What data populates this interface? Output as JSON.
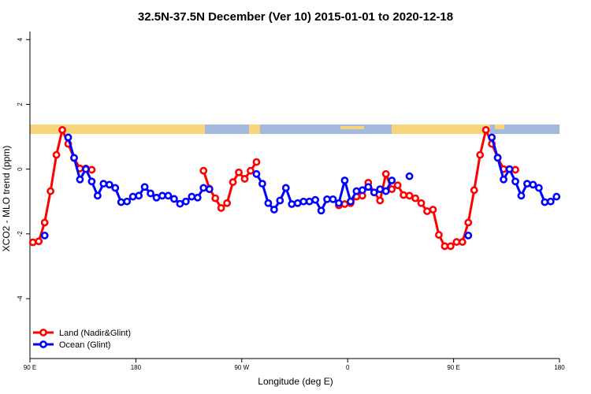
{
  "chart_data": {
    "type": "line",
    "title": "32.5N-37.5N December (Ver 10)   2015-01-01 to 2020-12-18",
    "x_label": "Longitude (deg E)",
    "y_label": "XCO2 - MLO trend (ppm)",
    "xlim": [
      90,
      540
    ],
    "ylim": [
      -5.85,
      4.25
    ],
    "xticks": [
      {
        "value": 90,
        "label": "90 E"
      },
      180,
      {
        "value": 270,
        "label": "90 W"
      },
      {
        "value": 360,
        "label": "0"
      },
      {
        "value": 450,
        "label": "90 E"
      },
      {
        "value": 540,
        "label": "180"
      }
    ],
    "yticks": [
      -4,
      -2,
      0,
      2,
      4
    ],
    "legend": "bottomleft",
    "x": [
      92.5,
      97.5,
      102.5,
      107.5,
      112.5,
      117.5,
      122.5,
      127.5,
      132.5,
      137.5,
      142.5,
      147.5,
      152.5,
      157.5,
      162.5,
      167.5,
      172.5,
      177.5,
      182.5,
      187.5,
      192.5,
      197.5,
      202.5,
      207.5,
      212.5,
      217.5,
      222.5,
      227.5,
      232.5,
      237.5,
      242.5,
      247.5,
      252.5,
      257.5,
      262.5,
      267.5,
      272.5,
      277.5,
      282.5,
      287.5,
      292.5,
      297.5,
      302.5,
      307.5,
      312.5,
      317.5,
      322.5,
      327.5,
      332.5,
      337.5,
      342.5,
      347.5,
      352.5,
      357.5,
      362.5,
      367.5,
      372.5,
      377.5,
      382.5,
      387.5,
      392.5,
      397.5,
      402.5,
      407.5,
      412.5,
      417.5,
      422.5,
      427.5,
      432.5,
      437.5,
      442.5,
      447.5,
      452.5,
      457.5,
      462.5,
      467.5,
      472.5,
      477.5,
      482.5,
      487.5,
      492.5,
      497.5,
      502.5,
      507.5,
      512.5,
      517.5,
      522.5,
      527.5,
      532.5,
      537.5
    ],
    "series": [
      {
        "name": "Land (Nadir&Glint)",
        "color": "#ff0000",
        "values": [
          -2.26,
          -2.23,
          -1.65,
          -0.68,
          0.44,
          1.21,
          0.78,
          0.34,
          0.02,
          0.02,
          -0.02,
          null,
          null,
          null,
          null,
          null,
          null,
          null,
          null,
          null,
          null,
          null,
          null,
          null,
          null,
          null,
          null,
          null,
          null,
          -0.05,
          -0.6,
          -0.9,
          -1.2,
          -1.05,
          -0.4,
          -0.1,
          -0.3,
          -0.05,
          0.22,
          null,
          null,
          null,
          null,
          null,
          null,
          null,
          null,
          null,
          null,
          null,
          null,
          null,
          -1.12,
          -1.08,
          -1.05,
          -0.85,
          -0.82,
          -0.42,
          -0.72,
          -0.97,
          -0.15,
          -0.62,
          -0.5,
          -0.8,
          -0.82,
          -0.9,
          -1.05,
          -1.3,
          -1.25,
          -2.03,
          -2.38,
          -2.38,
          -2.25,
          -2.25,
          -1.65,
          -0.65,
          0.44,
          1.21,
          0.78,
          0.36,
          0.0,
          0.0,
          -0.02,
          null,
          null,
          null,
          null,
          null,
          null,
          null
        ]
      },
      {
        "name": "Ocean (Glint)",
        "color": "#0000ff",
        "values": [
          null,
          null,
          -2.05,
          null,
          null,
          null,
          0.98,
          0.35,
          -0.32,
          0.0,
          -0.38,
          -0.82,
          -0.45,
          -0.48,
          -0.58,
          -1.02,
          -1.0,
          -0.85,
          -0.82,
          -0.55,
          -0.75,
          -0.88,
          -0.82,
          -0.82,
          -0.92,
          -1.07,
          -1.0,
          -0.85,
          -0.88,
          -0.58,
          -0.62,
          null,
          null,
          null,
          null,
          null,
          null,
          null,
          -0.15,
          -0.45,
          -1.05,
          -1.25,
          -0.97,
          -0.58,
          -1.08,
          -1.05,
          -1.0,
          -1.0,
          -0.95,
          -1.28,
          -0.93,
          -0.93,
          -1.05,
          -0.35,
          -1.0,
          -0.68,
          -0.65,
          -0.55,
          -0.72,
          -0.62,
          -0.68,
          -0.35,
          null,
          null,
          -0.22,
          null,
          null,
          null,
          null,
          null,
          null,
          null,
          null,
          null,
          -2.05,
          null,
          null,
          null,
          0.98,
          0.35,
          -0.32,
          0.0,
          -0.38,
          -0.82,
          -0.45,
          -0.48,
          -0.58,
          -1.02,
          -1.0,
          -0.85
        ]
      }
    ]
  }
}
